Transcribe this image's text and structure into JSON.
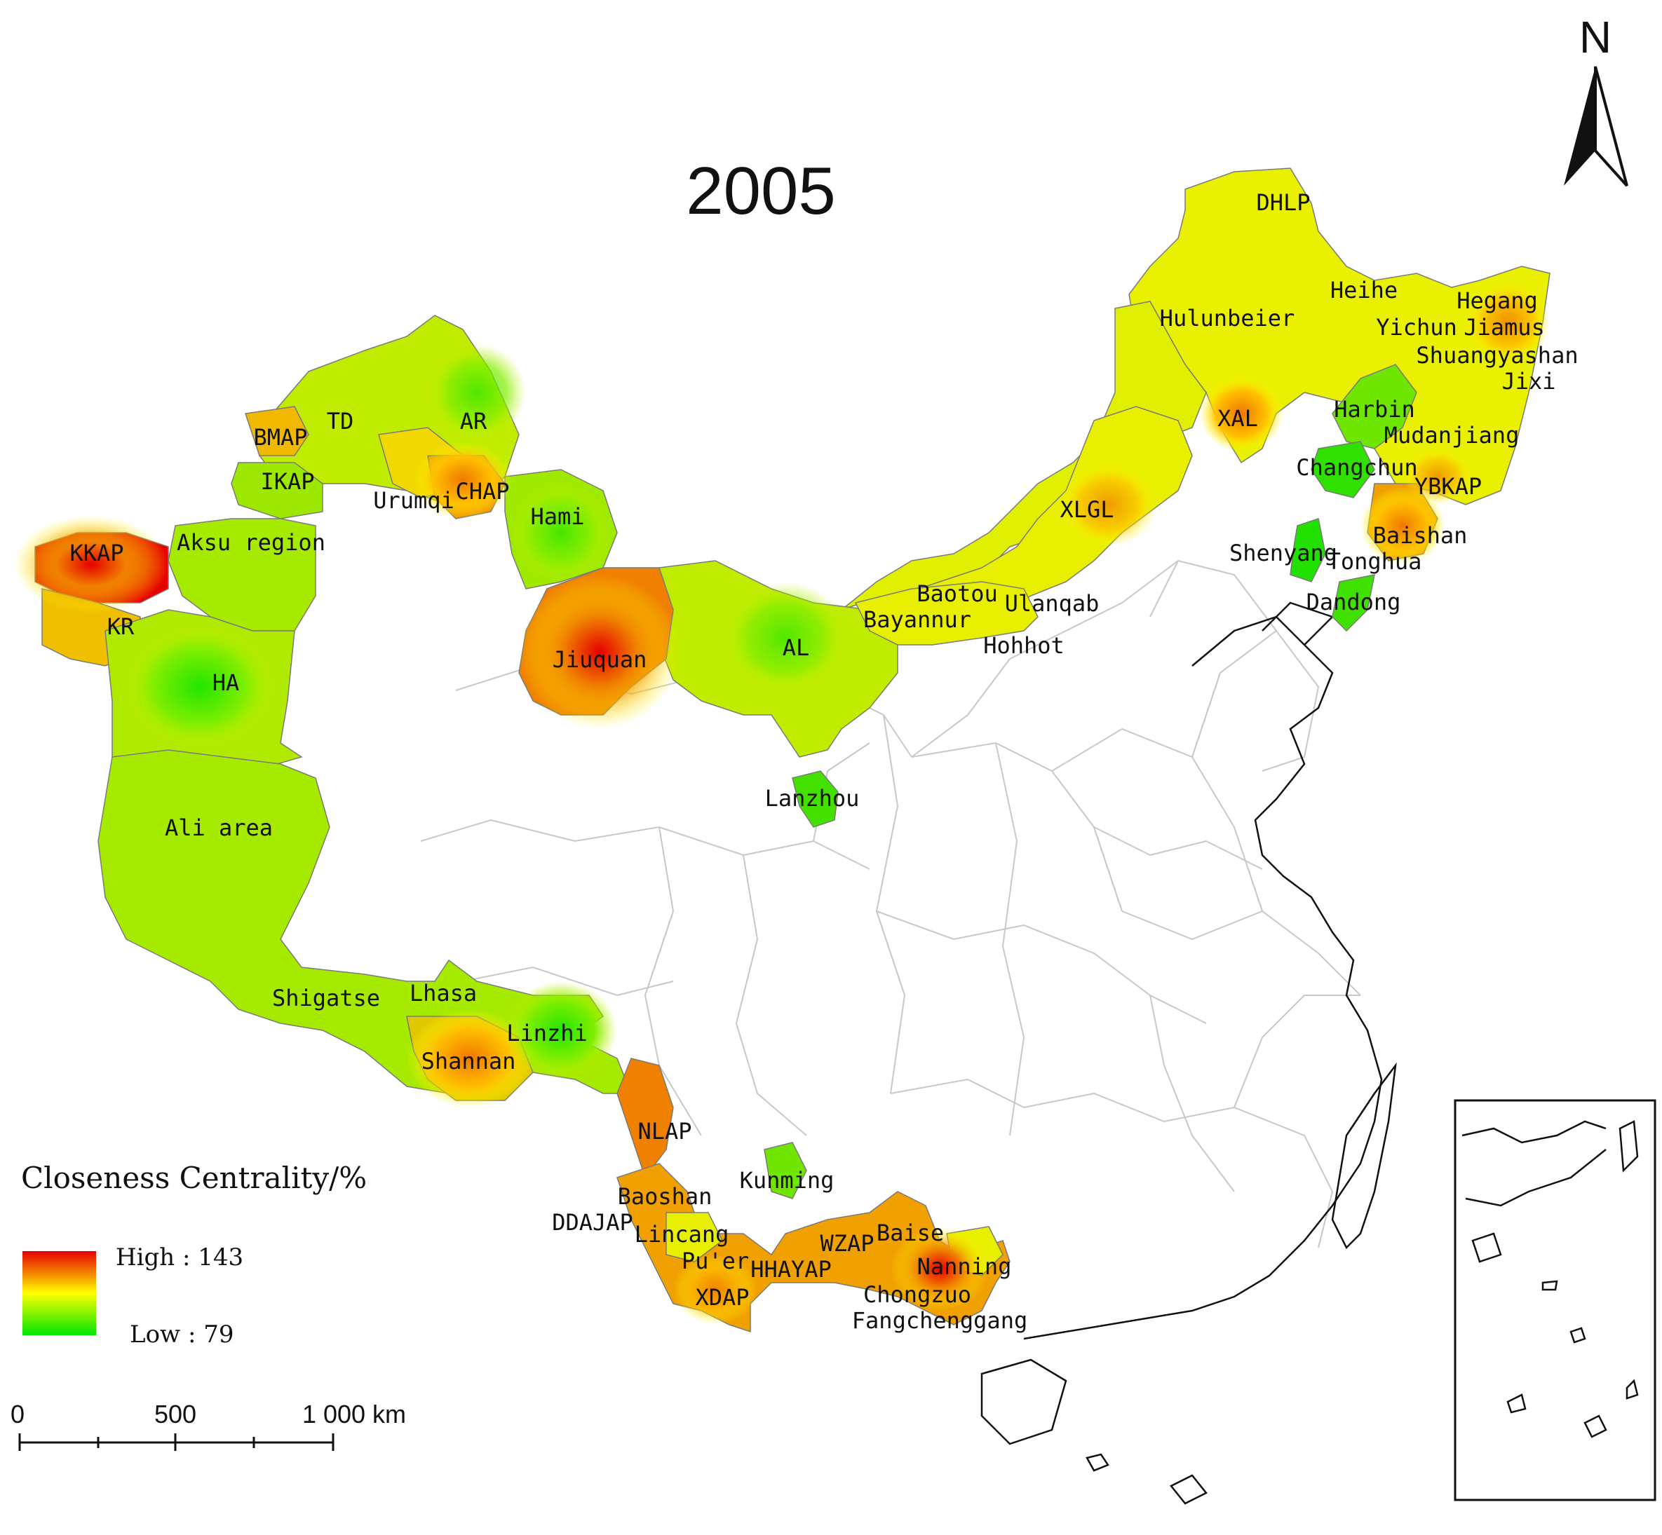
{
  "title": "2005",
  "north_label": "N",
  "legend": {
    "title": "Closeness Centrality/%",
    "high_label": "High : 143",
    "low_label": "Low : 79",
    "colors": {
      "high": "#e60000",
      "mid": "#ffff00",
      "low": "#00e600"
    }
  },
  "scale_bar": {
    "tick_0": "0",
    "tick_1": "500",
    "tick_2": "1 000 km"
  },
  "regions": {
    "dhlp": "DHLP",
    "hulunbeier": "Hulunbeier",
    "heihe": "Heihe",
    "hegang": "Hegang",
    "yichun": "Yichun",
    "jiamus": "Jiamus",
    "shuangyashan": "Shuangyashan",
    "jixi": "Jixi",
    "harbin": "Harbin",
    "mudanjiang": "Mudanjiang",
    "xal": "XAL",
    "changchun": "Changchun",
    "ybkap": "YBKAP",
    "baishan": "Baishan",
    "shenyang": "Shenyang",
    "tonghua": "Tonghua",
    "dandong": "Dandong",
    "xlgl": "XLGL",
    "baotou": "Baotou",
    "ulanqab": "Ulanqab",
    "bayannur": "Bayannur",
    "hohhot": "Hohhot",
    "al": "AL",
    "lanzhou": "Lanzhou",
    "jiuquan": "Jiuquan",
    "hami": "Hami",
    "ar": "AR",
    "td": "TD",
    "bmap": "BMAP",
    "ikap": "IKAP",
    "urumqi": "Urumqi",
    "chap": "CHAP",
    "aksu": "Aksu region",
    "kkap": "KKAP",
    "kr": "KR",
    "ha": "HA",
    "ali": "Ali area",
    "shigatse": "Shigatse",
    "lhasa": "Lhasa",
    "linzhi": "Linzhi",
    "shannan": "Shannan",
    "nlap": "NLAP",
    "baoshan": "Baoshan",
    "ddajap": "DDAJAP",
    "lincang": "Lincang",
    "puer": "Pu'er",
    "xdap": "XDAP",
    "hhayap": "HHAYAP",
    "wzap": "WZAP",
    "baise": "Baise",
    "kunming": "Kunming",
    "nanning": "Nanning",
    "chongzuo": "Chongzuo",
    "fangchenggang": "Fangchenggang"
  }
}
